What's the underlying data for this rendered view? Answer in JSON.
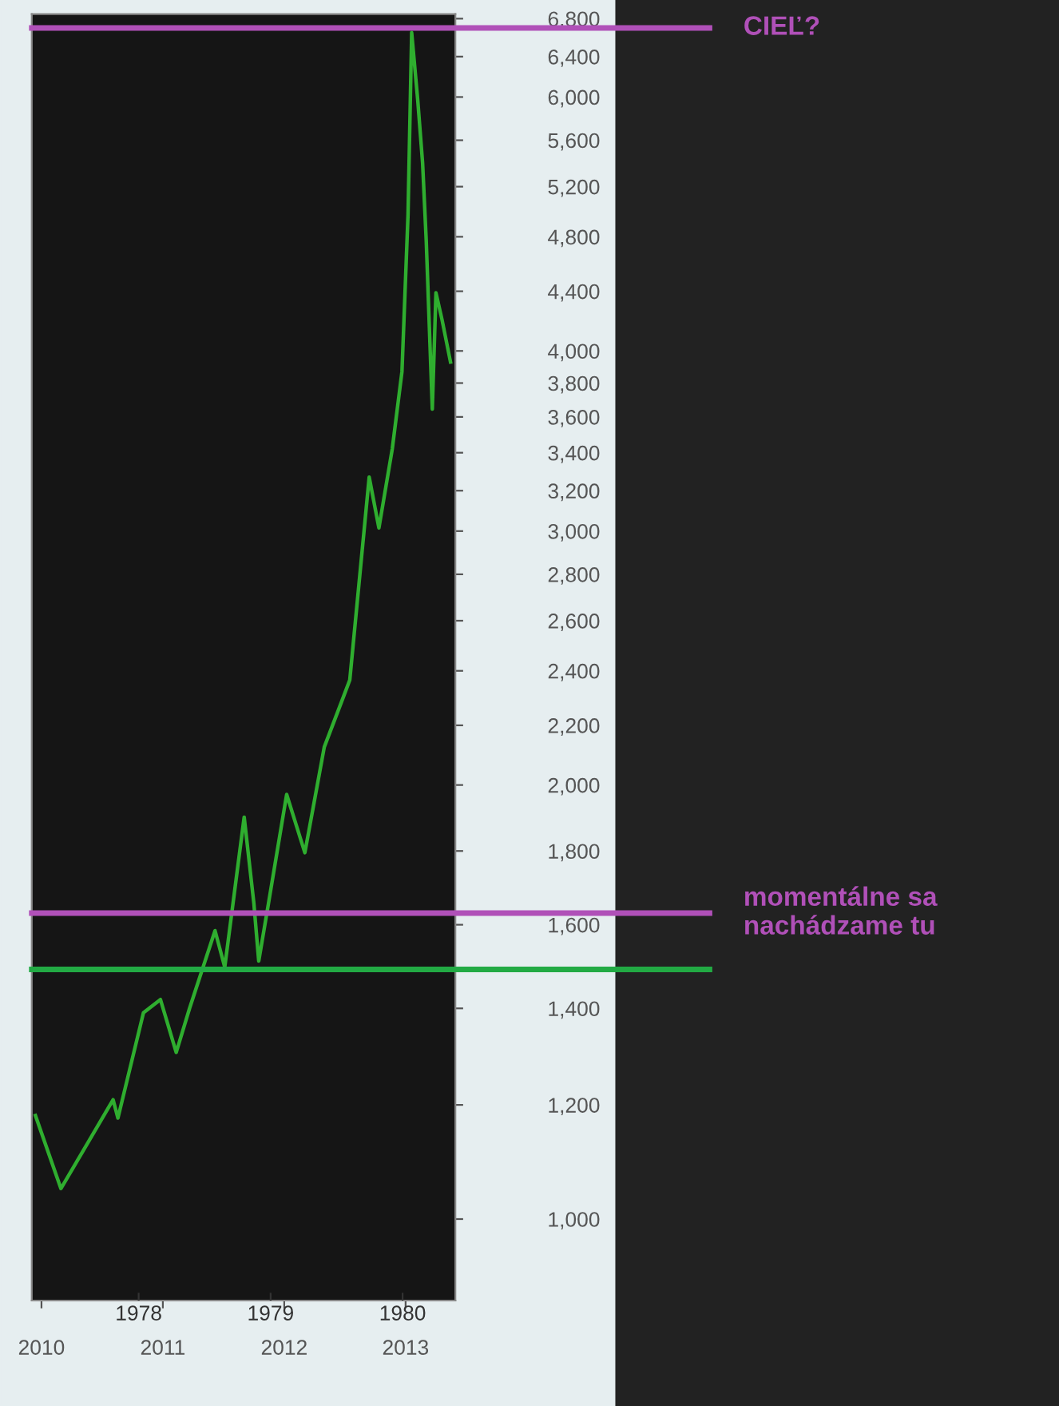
{
  "chart_data": {
    "type": "line",
    "x": [
      2009.95,
      2010.16,
      2010.37,
      2010.59,
      2010.63,
      2010.84,
      2010.98,
      2011.11,
      2011.22,
      2011.43,
      2011.51,
      2011.67,
      2011.75,
      2011.79,
      2011.87,
      2012.02,
      2012.17,
      2012.33,
      2012.49,
      2012.54,
      2012.7,
      2012.78,
      2012.89,
      2012.97,
      2013.02,
      2013.05,
      2013.1,
      2013.14,
      2013.17,
      2013.22,
      2013.25,
      2013.3,
      2013.37
    ],
    "series": [
      {
        "color": "#2fae2f",
        "values": [
          1180,
          1050,
          1125,
          1210,
          1175,
          1390,
          1420,
          1305,
          1400,
          1585,
          1495,
          1900,
          1655,
          1510,
          1655,
          1970,
          1795,
          2125,
          2305,
          2365,
          3270,
          3015,
          3420,
          3870,
          4975,
          6650,
          5970,
          5400,
          4770,
          3645,
          4390,
          4205,
          3930
        ]
      }
    ],
    "log": "y",
    "ylim": [
      878,
      6850
    ],
    "yticks": [
      {
        "value": 1000,
        "label": "1,000"
      },
      {
        "value": 1200,
        "label": "1,200"
      },
      {
        "value": 1400,
        "label": "1,400"
      },
      {
        "value": 1600,
        "label": "1,600"
      },
      {
        "value": 1800,
        "label": "1,800"
      },
      {
        "value": 2000,
        "label": "2,000"
      },
      {
        "value": 2200,
        "label": "2,200"
      },
      {
        "value": 2400,
        "label": "2,400"
      },
      {
        "value": 2600,
        "label": "2,600"
      },
      {
        "value": 2800,
        "label": "2,800"
      },
      {
        "value": 3000,
        "label": "3,000"
      },
      {
        "value": 3200,
        "label": "3,200"
      },
      {
        "value": 3400,
        "label": "3,400"
      },
      {
        "value": 3600,
        "label": "3,600"
      },
      {
        "value": 3800,
        "label": "3,800"
      },
      {
        "value": 4000,
        "label": "4,000"
      },
      {
        "value": 4400,
        "label": "4,400"
      },
      {
        "value": 4800,
        "label": "4,800"
      },
      {
        "value": 5200,
        "label": "5,200"
      },
      {
        "value": 5600,
        "label": "5,600"
      },
      {
        "value": 6000,
        "label": "6,000"
      },
      {
        "value": 6400,
        "label": "6,400"
      },
      {
        "value": 6800,
        "label": "6,800"
      }
    ],
    "xlim": [
      2009.92,
      2013.41
    ],
    "xticks": [
      2010,
      2011,
      2012,
      2013
    ],
    "x2lim": [
      1977.19,
      1980.4
    ],
    "x2ticks": [
      1978,
      1979,
      1980
    ],
    "ref_lines": [
      {
        "axis": "y",
        "value": 6700,
        "label": "CIEĽ?",
        "color": "#b050b8"
      },
      {
        "axis": "y",
        "value": 1630,
        "label": "momentálne sa\nnachádzame tu",
        "color": "#b050b8"
      },
      {
        "axis": "y",
        "value": 1490,
        "color": "#22aa44"
      }
    ],
    "grid": false
  }
}
